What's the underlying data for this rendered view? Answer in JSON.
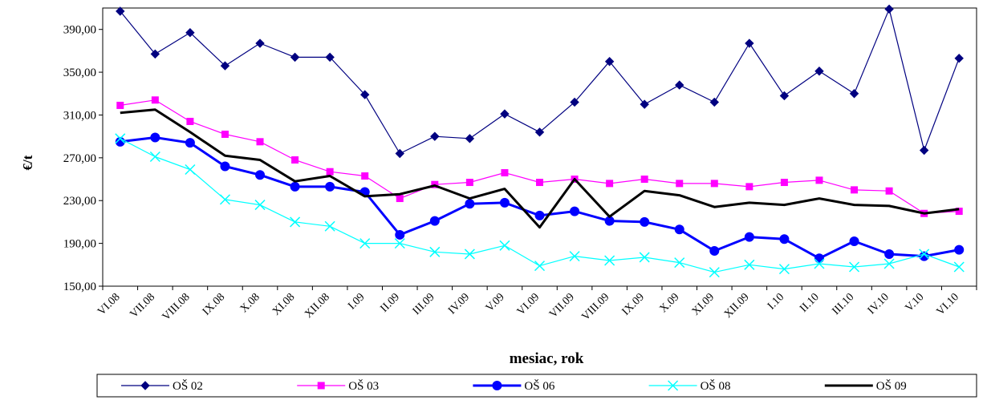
{
  "chart_data": {
    "type": "line",
    "title": "",
    "xlabel": "mesiac, rok",
    "ylabel": "€/t",
    "ylim": [
      150,
      410
    ],
    "yticks": [
      150,
      190,
      230,
      270,
      310,
      350,
      390
    ],
    "ytick_labels": [
      "150,00",
      "190,00",
      "230,00",
      "270,00",
      "310,00",
      "350,00",
      "390,00"
    ],
    "categories": [
      "VI.08",
      "VII.08",
      "VIII.08",
      "IX.08",
      "X.08",
      "XI.08",
      "XII.08",
      "I.09",
      "II.09",
      "III.09",
      "IV.09",
      "V.09",
      "VI.09",
      "VII.09",
      "VIII.09",
      "IX.09",
      "X.09",
      "XI.09",
      "XII.09",
      "I.10",
      "II.10",
      "III.10",
      "IV.10",
      "V.10",
      "VI.10"
    ],
    "grid": false,
    "legend_position": "bottom",
    "series": [
      {
        "name": "OŠ 02",
        "color": "#000080",
        "marker": "diamond",
        "values": [
          407,
          367,
          387,
          356,
          377,
          364,
          364,
          329,
          274,
          290,
          288,
          311,
          294,
          322,
          360,
          320,
          338,
          322,
          377,
          328,
          351,
          330,
          409,
          277,
          363
        ]
      },
      {
        "name": "OŠ 03",
        "color": "#ff00ff",
        "marker": "square",
        "values": [
          319,
          324,
          304,
          292,
          285,
          268,
          257,
          253,
          232,
          245,
          247,
          256,
          247,
          250,
          246,
          250,
          246,
          246,
          243,
          247,
          249,
          240,
          239,
          218,
          220
        ]
      },
      {
        "name": "OŠ 06",
        "color": "#0000ff",
        "marker": "circle",
        "values": [
          285,
          289,
          284,
          262,
          254,
          243,
          243,
          238,
          198,
          211,
          227,
          228,
          216,
          220,
          211,
          210,
          203,
          183,
          196,
          194,
          176,
          192,
          180,
          178,
          184
        ]
      },
      {
        "name": "OŠ 08",
        "color": "#00ffff",
        "marker": "x",
        "values": [
          288,
          271,
          259,
          231,
          226,
          210,
          206,
          190,
          190,
          182,
          180,
          188,
          169,
          178,
          174,
          177,
          172,
          163,
          170,
          166,
          171,
          168,
          171,
          180,
          168
        ]
      },
      {
        "name": "OŠ 09",
        "color": "#000000",
        "marker": "none",
        "values": [
          312,
          315,
          294,
          272,
          268,
          248,
          253,
          234,
          236,
          244,
          232,
          241,
          205,
          250,
          215,
          239,
          235,
          224,
          228,
          226,
          232,
          226,
          225,
          218,
          222
        ]
      }
    ]
  }
}
